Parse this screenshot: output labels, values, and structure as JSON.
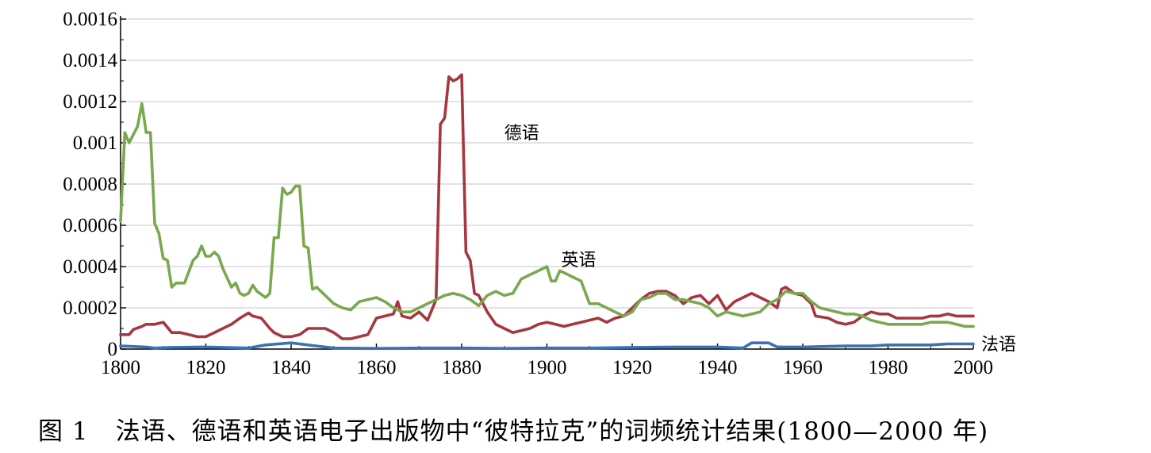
{
  "caption": {
    "figure_number": "图 1",
    "text": "法语、德语和英语电子出版物中“彼特拉克”的词频统计结果(1800—2000 年)"
  },
  "chart_data": {
    "type": "line",
    "xlim": [
      1800,
      2000
    ],
    "ylim": [
      0,
      0.0016
    ],
    "x_ticks": [
      "1800",
      "1820",
      "1840",
      "1860",
      "1880",
      "1900",
      "1920",
      "1940",
      "1960",
      "1980",
      "2000"
    ],
    "y_ticks": [
      "0",
      "0.0002",
      "0.0004",
      "0.0006",
      "0.0008",
      "0.001",
      "0.0012",
      "0.0014",
      "0.0016"
    ],
    "grid": "horizontal",
    "series": [
      {
        "name": "德语",
        "color": "#a6373f",
        "points": [
          [
            1800,
            7e-05
          ],
          [
            1802,
            7e-05
          ],
          [
            1803,
            9.5e-05
          ],
          [
            1805,
            0.00011
          ],
          [
            1806,
            0.00012
          ],
          [
            1808,
            0.00012
          ],
          [
            1810,
            0.00013
          ],
          [
            1811,
            0.000105
          ],
          [
            1812,
            8e-05
          ],
          [
            1814,
            8e-05
          ],
          [
            1816,
            7e-05
          ],
          [
            1818,
            6e-05
          ],
          [
            1820,
            6e-05
          ],
          [
            1822,
            8e-05
          ],
          [
            1824,
            0.0001
          ],
          [
            1826,
            0.00012
          ],
          [
            1828,
            0.00015
          ],
          [
            1830,
            0.000175
          ],
          [
            1831,
            0.00016
          ],
          [
            1833,
            0.00015
          ],
          [
            1835,
            0.0001
          ],
          [
            1836,
            8e-05
          ],
          [
            1838,
            6e-05
          ],
          [
            1840,
            6e-05
          ],
          [
            1842,
            7e-05
          ],
          [
            1844,
            0.0001
          ],
          [
            1846,
            0.0001
          ],
          [
            1848,
            0.0001
          ],
          [
            1850,
            8e-05
          ],
          [
            1852,
            5e-05
          ],
          [
            1854,
            5e-05
          ],
          [
            1856,
            6e-05
          ],
          [
            1858,
            7e-05
          ],
          [
            1860,
            0.00015
          ],
          [
            1862,
            0.00016
          ],
          [
            1864,
            0.00017
          ],
          [
            1865,
            0.00023
          ],
          [
            1866,
            0.00016
          ],
          [
            1868,
            0.00015
          ],
          [
            1870,
            0.00018
          ],
          [
            1872,
            0.00014
          ],
          [
            1874,
            0.00024
          ],
          [
            1875,
            0.00109
          ],
          [
            1876,
            0.00112
          ],
          [
            1877,
            0.00132
          ],
          [
            1878,
            0.0013
          ],
          [
            1879,
            0.00131
          ],
          [
            1880,
            0.00133
          ],
          [
            1881,
            0.00047
          ],
          [
            1882,
            0.00043
          ],
          [
            1883,
            0.00027
          ],
          [
            1884,
            0.00026
          ],
          [
            1886,
            0.00018
          ],
          [
            1888,
            0.00012
          ],
          [
            1890,
            0.0001
          ],
          [
            1892,
            8e-05
          ],
          [
            1894,
            9e-05
          ],
          [
            1896,
            0.0001
          ],
          [
            1898,
            0.00012
          ],
          [
            1900,
            0.00013
          ],
          [
            1902,
            0.00012
          ],
          [
            1904,
            0.00011
          ],
          [
            1906,
            0.00012
          ],
          [
            1908,
            0.00013
          ],
          [
            1910,
            0.00014
          ],
          [
            1912,
            0.00015
          ],
          [
            1914,
            0.00013
          ],
          [
            1916,
            0.00015
          ],
          [
            1918,
            0.00016
          ],
          [
            1920,
            0.0002
          ],
          [
            1922,
            0.00024
          ],
          [
            1924,
            0.00027
          ],
          [
            1926,
            0.00028
          ],
          [
            1928,
            0.00028
          ],
          [
            1930,
            0.00026
          ],
          [
            1932,
            0.00022
          ],
          [
            1934,
            0.00025
          ],
          [
            1936,
            0.00026
          ],
          [
            1938,
            0.00022
          ],
          [
            1940,
            0.00026
          ],
          [
            1942,
            0.00019
          ],
          [
            1944,
            0.00023
          ],
          [
            1946,
            0.00025
          ],
          [
            1948,
            0.00027
          ],
          [
            1950,
            0.00025
          ],
          [
            1952,
            0.00023
          ],
          [
            1954,
            0.0002
          ],
          [
            1955,
            0.00029
          ],
          [
            1956,
            0.0003
          ],
          [
            1958,
            0.00027
          ],
          [
            1960,
            0.00026
          ],
          [
            1962,
            0.00022
          ],
          [
            1963,
            0.00016
          ],
          [
            1966,
            0.00015
          ],
          [
            1968,
            0.00013
          ],
          [
            1970,
            0.00012
          ],
          [
            1972,
            0.00013
          ],
          [
            1974,
            0.00016
          ],
          [
            1976,
            0.00018
          ],
          [
            1978,
            0.00017
          ],
          [
            1980,
            0.00017
          ],
          [
            1982,
            0.00015
          ],
          [
            1984,
            0.00015
          ],
          [
            1986,
            0.00015
          ],
          [
            1988,
            0.00015
          ],
          [
            1990,
            0.00016
          ],
          [
            1992,
            0.00016
          ],
          [
            1994,
            0.00017
          ],
          [
            1996,
            0.00016
          ],
          [
            1998,
            0.00016
          ],
          [
            2000,
            0.00016
          ]
        ]
      },
      {
        "name": "英语",
        "color": "#79a84f",
        "points": [
          [
            1800,
            0.00062
          ],
          [
            1801,
            0.00105
          ],
          [
            1802,
            0.001
          ],
          [
            1803,
            0.00104
          ],
          [
            1804,
            0.00108
          ],
          [
            1805,
            0.00119
          ],
          [
            1806,
            0.00105
          ],
          [
            1807,
            0.00105
          ],
          [
            1808,
            0.00061
          ],
          [
            1809,
            0.00056
          ],
          [
            1810,
            0.00044
          ],
          [
            1811,
            0.00043
          ],
          [
            1812,
            0.0003
          ],
          [
            1813,
            0.00032
          ],
          [
            1815,
            0.00032
          ],
          [
            1817,
            0.00043
          ],
          [
            1818,
            0.00045
          ],
          [
            1819,
            0.0005
          ],
          [
            1820,
            0.00045
          ],
          [
            1821,
            0.00045
          ],
          [
            1822,
            0.00047
          ],
          [
            1823,
            0.00045
          ],
          [
            1824,
            0.00039
          ],
          [
            1826,
            0.0003
          ],
          [
            1827,
            0.00032
          ],
          [
            1828,
            0.00027
          ],
          [
            1829,
            0.00026
          ],
          [
            1830,
            0.00027
          ],
          [
            1831,
            0.00031
          ],
          [
            1832,
            0.00028
          ],
          [
            1834,
            0.00025
          ],
          [
            1835,
            0.00027
          ],
          [
            1836,
            0.00054
          ],
          [
            1837,
            0.00054
          ],
          [
            1838,
            0.00078
          ],
          [
            1839,
            0.00075
          ],
          [
            1840,
            0.00076
          ],
          [
            1841,
            0.00079
          ],
          [
            1842,
            0.00079
          ],
          [
            1843,
            0.0005
          ],
          [
            1844,
            0.00049
          ],
          [
            1845,
            0.00029
          ],
          [
            1846,
            0.0003
          ],
          [
            1848,
            0.00026
          ],
          [
            1850,
            0.00022
          ],
          [
            1852,
            0.0002
          ],
          [
            1854,
            0.00019
          ],
          [
            1856,
            0.00023
          ],
          [
            1858,
            0.00024
          ],
          [
            1860,
            0.00025
          ],
          [
            1862,
            0.00023
          ],
          [
            1864,
            0.0002
          ],
          [
            1866,
            0.00018
          ],
          [
            1868,
            0.00018
          ],
          [
            1870,
            0.0002
          ],
          [
            1872,
            0.00022
          ],
          [
            1874,
            0.00024
          ],
          [
            1876,
            0.00026
          ],
          [
            1878,
            0.00027
          ],
          [
            1880,
            0.00026
          ],
          [
            1882,
            0.00024
          ],
          [
            1884,
            0.00021
          ],
          [
            1886,
            0.00026
          ],
          [
            1888,
            0.00028
          ],
          [
            1890,
            0.00026
          ],
          [
            1892,
            0.00027
          ],
          [
            1894,
            0.00034
          ],
          [
            1896,
            0.00036
          ],
          [
            1898,
            0.00038
          ],
          [
            1900,
            0.0004
          ],
          [
            1901,
            0.00033
          ],
          [
            1902,
            0.00033
          ],
          [
            1903,
            0.00038
          ],
          [
            1904,
            0.00037
          ],
          [
            1906,
            0.00035
          ],
          [
            1908,
            0.00033
          ],
          [
            1910,
            0.00022
          ],
          [
            1912,
            0.00022
          ],
          [
            1914,
            0.0002
          ],
          [
            1916,
            0.00018
          ],
          [
            1918,
            0.00016
          ],
          [
            1920,
            0.00018
          ],
          [
            1922,
            0.00024
          ],
          [
            1924,
            0.00025
          ],
          [
            1926,
            0.00027
          ],
          [
            1928,
            0.00027
          ],
          [
            1930,
            0.00024
          ],
          [
            1932,
            0.00024
          ],
          [
            1934,
            0.00023
          ],
          [
            1936,
            0.00022
          ],
          [
            1938,
            0.0002
          ],
          [
            1940,
            0.00016
          ],
          [
            1942,
            0.00018
          ],
          [
            1944,
            0.00017
          ],
          [
            1946,
            0.00016
          ],
          [
            1948,
            0.00017
          ],
          [
            1950,
            0.00018
          ],
          [
            1952,
            0.00022
          ],
          [
            1954,
            0.00024
          ],
          [
            1956,
            0.00028
          ],
          [
            1958,
            0.00027
          ],
          [
            1960,
            0.00027
          ],
          [
            1962,
            0.00023
          ],
          [
            1964,
            0.0002
          ],
          [
            1966,
            0.00019
          ],
          [
            1968,
            0.00018
          ],
          [
            1970,
            0.00017
          ],
          [
            1972,
            0.00017
          ],
          [
            1974,
            0.00016
          ],
          [
            1976,
            0.00014
          ],
          [
            1978,
            0.00013
          ],
          [
            1980,
            0.00012
          ],
          [
            1982,
            0.00012
          ],
          [
            1984,
            0.00012
          ],
          [
            1986,
            0.00012
          ],
          [
            1988,
            0.00012
          ],
          [
            1990,
            0.00013
          ],
          [
            1992,
            0.00013
          ],
          [
            1994,
            0.00013
          ],
          [
            1996,
            0.00012
          ],
          [
            1998,
            0.00011
          ],
          [
            2000,
            0.00011
          ]
        ]
      },
      {
        "name": "法语",
        "color": "#3c72b3",
        "points": [
          [
            1800,
            1.5e-05
          ],
          [
            1806,
            1e-05
          ],
          [
            1808,
            5e-06
          ],
          [
            1812,
            8e-06
          ],
          [
            1820,
            1e-05
          ],
          [
            1830,
            5e-06
          ],
          [
            1834,
            2e-05
          ],
          [
            1840,
            3e-05
          ],
          [
            1846,
            1.5e-05
          ],
          [
            1850,
            5e-06
          ],
          [
            1860,
            3e-06
          ],
          [
            1870,
            5e-06
          ],
          [
            1880,
            5e-06
          ],
          [
            1890,
            3e-06
          ],
          [
            1900,
            5e-06
          ],
          [
            1910,
            5e-06
          ],
          [
            1920,
            8e-06
          ],
          [
            1930,
            1e-05
          ],
          [
            1940,
            1e-05
          ],
          [
            1946,
            5e-06
          ],
          [
            1948,
            3e-05
          ],
          [
            1952,
            3e-05
          ],
          [
            1954,
            1e-05
          ],
          [
            1960,
            1e-05
          ],
          [
            1970,
            1.5e-05
          ],
          [
            1976,
            1.5e-05
          ],
          [
            1980,
            2e-05
          ],
          [
            1990,
            2e-05
          ],
          [
            1994,
            2.5e-05
          ],
          [
            2000,
            2.5e-05
          ]
        ]
      }
    ]
  }
}
